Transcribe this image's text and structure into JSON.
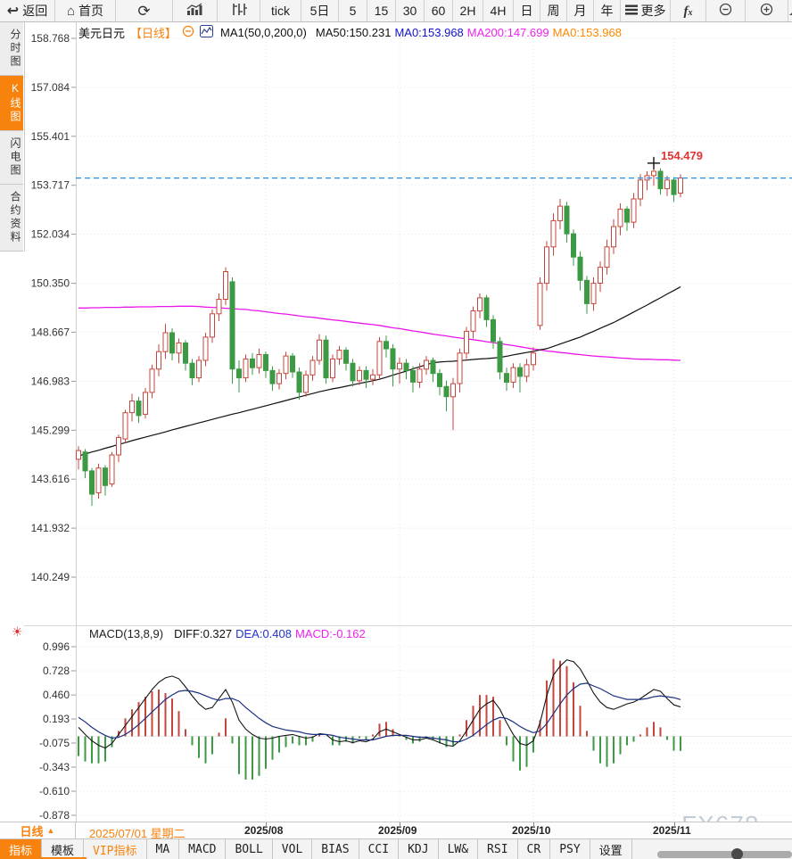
{
  "toolbar": {
    "buttons": [
      {
        "name": "back-button",
        "label": "返回",
        "icon": "back-icon"
      },
      {
        "name": "home-button",
        "label": "首页",
        "icon": "home-icon"
      },
      {
        "name": "refresh-button",
        "label": "",
        "icon": "refresh-icon"
      },
      {
        "name": "bar-chart-button",
        "label": "",
        "icon": "bar-chart-icon"
      },
      {
        "name": "candlestick-chart-button",
        "label": "",
        "icon": "candlestick-icon"
      },
      {
        "name": "interval-tick-button",
        "label": "tick"
      },
      {
        "name": "interval-5d-button",
        "label": "5日"
      },
      {
        "name": "interval-5-button",
        "label": "5"
      },
      {
        "name": "interval-15-button",
        "label": "15"
      },
      {
        "name": "interval-30-button",
        "label": "30"
      },
      {
        "name": "interval-60-button",
        "label": "60"
      },
      {
        "name": "interval-2h-button",
        "label": "2H"
      },
      {
        "name": "interval-4h-button",
        "label": "4H"
      },
      {
        "name": "interval-day-button",
        "label": "日"
      },
      {
        "name": "interval-week-button",
        "label": "周"
      },
      {
        "name": "interval-month-button",
        "label": "月"
      },
      {
        "name": "interval-year-button",
        "label": "年"
      },
      {
        "name": "more-button",
        "label": "更多",
        "icon": "menu-icon"
      },
      {
        "name": "formula-button",
        "label": "",
        "icon": "fx-icon"
      },
      {
        "name": "zoom-out-button",
        "label": "",
        "icon": "zoom-out-icon"
      },
      {
        "name": "zoom-in-button",
        "label": "",
        "icon": "zoom-in-icon"
      },
      {
        "name": "draw-button",
        "label": "",
        "icon": "draw-icon"
      }
    ]
  },
  "sidebar": {
    "items": [
      {
        "name": "sidebar-item-time-chart",
        "label": "分时图",
        "active": false
      },
      {
        "name": "sidebar-item-kline-chart",
        "label": "K线图",
        "active": true
      },
      {
        "name": "sidebar-item-lightning-chart",
        "label": "闪电图",
        "active": false
      },
      {
        "name": "sidebar-item-contract-info",
        "label": "合约资料",
        "active": false
      }
    ]
  },
  "chart_header": {
    "symbol": "美元日元",
    "period_tag": "【日线】",
    "ma_settings": "MA1(50,0,200,0)",
    "ma_values": [
      {
        "label": "MA50:150.231",
        "color": "#111111"
      },
      {
        "label": "MA0:153.968",
        "color": "#1111cc"
      },
      {
        "label": "MA200:147.699",
        "color": "#ee22ee"
      },
      {
        "label": "MA0:153.968",
        "color": "#ff8800"
      }
    ]
  },
  "macd_header": {
    "title": "MACD(13,8,9)",
    "values": [
      {
        "label": "DIFF:0.327",
        "color": "#111111"
      },
      {
        "label": "DEA:0.408",
        "color": "#2233cc"
      },
      {
        "label": "MACD:-0.162",
        "color": "#ee22ee"
      }
    ]
  },
  "price_marker": {
    "value": "154.479"
  },
  "status_bar": {
    "period": "日线",
    "date": "2025/07/01 星期二"
  },
  "bottom_tabs": [
    {
      "id": "indicator",
      "label": "指标",
      "state": "active"
    },
    {
      "id": "template",
      "label": "模板"
    },
    {
      "id": "vip-indicator",
      "label": "VIP指标",
      "state": "vip"
    },
    {
      "id": "ma",
      "label": "MA"
    },
    {
      "id": "macd",
      "label": "MACD"
    },
    {
      "id": "boll",
      "label": "BOLL"
    },
    {
      "id": "vol",
      "label": "VOL"
    },
    {
      "id": "bias",
      "label": "BIAS"
    },
    {
      "id": "cci",
      "label": "CCI"
    },
    {
      "id": "kdj",
      "label": "KDJ"
    },
    {
      "id": "lwr",
      "label": "LW&"
    },
    {
      "id": "rsi",
      "label": "RSI"
    },
    {
      "id": "cr",
      "label": "CR"
    },
    {
      "id": "psy",
      "label": "PSY"
    },
    {
      "id": "settings",
      "label": "设置"
    }
  ],
  "watermark": "FX678",
  "chart_data": {
    "type": "candlestick",
    "symbol": "USD/JPY 美元日元",
    "period": "daily",
    "start_date": "2025/07/01",
    "current_price": 153.968,
    "high_marker": {
      "value": 154.479,
      "index": 86
    },
    "y_axis": {
      "ticks": [
        158.768,
        157.084,
        155.401,
        153.717,
        152.034,
        150.35,
        148.667,
        146.983,
        145.299,
        143.616,
        141.932,
        140.249
      ]
    },
    "x_axis": {
      "month_labels": [
        "2025/08",
        "2025/09",
        "2025/10",
        "2025/11"
      ],
      "month_label_indices": [
        28,
        48,
        68,
        89
      ]
    },
    "colors": {
      "up": "#c6453e",
      "down": "#3c9a44",
      "ma50": "#101010",
      "ma200": "#e916e9",
      "diff": "#151515",
      "dea": "#1b3080",
      "price_line": "#1f8fe8",
      "marker": "#e03333"
    },
    "candles": [
      [
        144.3,
        144.75,
        143.95,
        144.6
      ],
      [
        144.55,
        144.65,
        143.65,
        143.9
      ],
      [
        143.9,
        144.0,
        142.7,
        143.1
      ],
      [
        143.15,
        144.15,
        142.95,
        144.0
      ],
      [
        144.0,
        144.1,
        143.05,
        143.4
      ],
      [
        143.45,
        144.55,
        143.35,
        144.45
      ],
      [
        144.45,
        145.15,
        144.2,
        145.05
      ],
      [
        145.0,
        146.0,
        144.85,
        145.9
      ],
      [
        145.9,
        146.55,
        145.6,
        146.3
      ],
      [
        146.3,
        146.45,
        145.55,
        145.8
      ],
      [
        145.85,
        146.75,
        145.7,
        146.6
      ],
      [
        146.6,
        147.55,
        146.4,
        147.4
      ],
      [
        147.4,
        148.25,
        147.15,
        148.0
      ],
      [
        148.0,
        148.95,
        147.75,
        148.65
      ],
      [
        148.65,
        148.8,
        147.7,
        147.95
      ],
      [
        147.95,
        148.45,
        147.6,
        148.3
      ],
      [
        148.3,
        148.4,
        147.35,
        147.6
      ],
      [
        147.6,
        147.75,
        146.85,
        147.1
      ],
      [
        147.1,
        147.85,
        146.95,
        147.7
      ],
      [
        147.7,
        148.65,
        147.5,
        148.5
      ],
      [
        148.5,
        149.45,
        148.3,
        149.3
      ],
      [
        149.3,
        150.0,
        149.05,
        149.8
      ],
      [
        149.8,
        150.9,
        149.6,
        150.75
      ],
      [
        150.4,
        150.55,
        146.9,
        147.4
      ],
      [
        147.4,
        147.7,
        146.6,
        147.1
      ],
      [
        147.1,
        147.9,
        146.95,
        147.75
      ],
      [
        147.75,
        147.95,
        147.2,
        147.45
      ],
      [
        147.45,
        148.1,
        147.25,
        147.9
      ],
      [
        147.9,
        148.0,
        147.1,
        147.35
      ],
      [
        147.35,
        147.5,
        146.65,
        146.9
      ],
      [
        146.9,
        147.4,
        146.7,
        147.25
      ],
      [
        147.25,
        148.0,
        147.05,
        147.85
      ],
      [
        147.85,
        147.95,
        147.1,
        147.3
      ],
      [
        147.3,
        147.45,
        146.35,
        146.6
      ],
      [
        146.6,
        147.35,
        146.45,
        147.2
      ],
      [
        147.2,
        147.85,
        147.0,
        147.7
      ],
      [
        147.7,
        148.6,
        147.55,
        148.4
      ],
      [
        148.4,
        148.55,
        146.9,
        147.1
      ],
      [
        147.1,
        147.9,
        146.95,
        147.75
      ],
      [
        147.75,
        148.2,
        147.55,
        148.05
      ],
      [
        148.05,
        148.15,
        147.35,
        147.6
      ],
      [
        147.6,
        147.75,
        146.8,
        147.0
      ],
      [
        147.0,
        147.5,
        146.85,
        147.35
      ],
      [
        147.35,
        147.5,
        146.75,
        147.05
      ],
      [
        147.05,
        147.4,
        146.85,
        147.2
      ],
      [
        147.2,
        148.5,
        147.05,
        148.35
      ],
      [
        148.35,
        148.55,
        147.8,
        148.1
      ],
      [
        148.1,
        148.25,
        146.8,
        147.4
      ],
      [
        147.4,
        147.8,
        146.9,
        147.6
      ],
      [
        147.6,
        147.75,
        147.05,
        147.35
      ],
      [
        147.35,
        147.5,
        146.6,
        146.95
      ],
      [
        146.95,
        147.6,
        146.75,
        147.4
      ],
      [
        147.4,
        147.85,
        147.2,
        147.7
      ],
      [
        147.7,
        147.8,
        146.95,
        147.25
      ],
      [
        147.25,
        147.4,
        146.5,
        146.8
      ],
      [
        146.8,
        147.0,
        145.95,
        146.45
      ],
      [
        146.45,
        147.1,
        145.3,
        146.9
      ],
      [
        146.9,
        148.1,
        146.6,
        147.95
      ],
      [
        147.95,
        148.85,
        147.75,
        148.7
      ],
      [
        148.7,
        149.55,
        148.45,
        149.4
      ],
      [
        149.4,
        150.0,
        149.15,
        149.85
      ],
      [
        149.85,
        149.95,
        148.85,
        149.1
      ],
      [
        149.1,
        149.25,
        148.1,
        148.35
      ],
      [
        148.35,
        148.5,
        147.05,
        147.3
      ],
      [
        147.25,
        147.45,
        146.65,
        146.95
      ],
      [
        146.95,
        147.6,
        146.75,
        147.45
      ],
      [
        147.45,
        147.6,
        146.6,
        147.15
      ],
      [
        147.15,
        147.75,
        146.95,
        147.55
      ],
      [
        147.55,
        148.15,
        147.35,
        147.95
      ],
      [
        148.9,
        150.55,
        148.75,
        150.35
      ],
      [
        150.35,
        151.8,
        150.1,
        151.6
      ],
      [
        151.6,
        152.75,
        151.3,
        152.5
      ],
      [
        152.5,
        153.25,
        152.2,
        153.0
      ],
      [
        153.0,
        153.15,
        151.75,
        152.05
      ],
      [
        152.05,
        152.2,
        150.95,
        151.25
      ],
      [
        151.25,
        151.45,
        150.1,
        150.45
      ],
      [
        150.45,
        150.6,
        149.3,
        149.65
      ],
      [
        149.65,
        150.55,
        149.4,
        150.35
      ],
      [
        150.35,
        151.1,
        150.05,
        150.9
      ],
      [
        150.9,
        151.85,
        150.65,
        151.6
      ],
      [
        151.6,
        152.55,
        151.35,
        152.3
      ],
      [
        152.3,
        153.1,
        152.0,
        152.9
      ],
      [
        152.9,
        153.0,
        152.15,
        152.45
      ],
      [
        152.45,
        153.45,
        152.25,
        153.25
      ],
      [
        153.25,
        154.1,
        153.0,
        153.9
      ],
      [
        153.9,
        154.2,
        153.55,
        154.05
      ],
      [
        154.05,
        154.48,
        153.7,
        154.2
      ],
      [
        154.2,
        154.3,
        153.4,
        153.6
      ],
      [
        153.6,
        154.05,
        153.35,
        153.9
      ],
      [
        153.9,
        154.0,
        153.15,
        153.4
      ],
      [
        153.45,
        154.1,
        153.3,
        153.97
      ]
    ],
    "ma50": [
      144.42,
      144.48,
      144.55,
      144.61,
      144.68,
      144.74,
      144.81,
      144.87,
      144.94,
      145.0,
      145.06,
      145.12,
      145.18,
      145.24,
      145.31,
      145.37,
      145.43,
      145.49,
      145.55,
      145.61,
      145.67,
      145.73,
      145.79,
      145.85,
      145.9,
      145.96,
      146.02,
      146.08,
      146.14,
      146.2,
      146.26,
      146.32,
      146.38,
      146.44,
      146.5,
      146.56,
      146.62,
      146.67,
      146.72,
      146.76,
      146.81,
      146.86,
      146.91,
      146.95,
      147.0,
      147.05,
      147.12,
      147.19,
      147.26,
      147.33,
      147.41,
      147.48,
      147.55,
      147.62,
      147.64,
      147.66,
      147.67,
      147.69,
      147.71,
      147.73,
      147.75,
      147.76,
      147.78,
      147.8,
      147.84,
      147.89,
      147.93,
      147.97,
      148.01,
      148.06,
      148.1,
      148.18,
      148.26,
      148.34,
      148.42,
      148.5,
      148.6,
      148.7,
      148.8,
      148.9,
      149.0,
      149.12,
      149.24,
      149.36,
      149.48,
      149.6,
      149.73,
      149.85,
      149.98,
      150.1,
      150.23
    ],
    "ma200": [
      149.5,
      149.5,
      149.51,
      149.51,
      149.52,
      149.52,
      149.52,
      149.53,
      149.53,
      149.54,
      149.54,
      149.54,
      149.55,
      149.55,
      149.55,
      149.56,
      149.56,
      149.56,
      149.55,
      149.53,
      149.52,
      149.51,
      149.49,
      149.48,
      149.46,
      149.45,
      149.42,
      149.4,
      149.37,
      149.34,
      149.31,
      149.29,
      149.26,
      149.23,
      149.2,
      149.18,
      149.15,
      149.12,
      149.09,
      149.07,
      149.04,
      149.01,
      148.98,
      148.95,
      148.93,
      148.9,
      148.86,
      148.82,
      148.79,
      148.75,
      148.71,
      148.68,
      148.64,
      148.6,
      148.57,
      148.54,
      148.5,
      148.47,
      148.44,
      148.41,
      148.38,
      148.34,
      148.31,
      148.28,
      148.24,
      148.21,
      148.17,
      148.13,
      148.09,
      148.06,
      148.02,
      148.0,
      147.97,
      147.95,
      147.92,
      147.9,
      147.87,
      147.85,
      147.83,
      147.82,
      147.8,
      147.78,
      147.77,
      147.75,
      147.74,
      147.74,
      147.73,
      147.72,
      147.72,
      147.71,
      147.7
    ],
    "macd": {
      "params": "13,8,9",
      "y_ticks": [
        0.996,
        0.728,
        0.46,
        0.193,
        -0.075,
        -0.343,
        -0.61,
        -0.878
      ],
      "diff": [
        0.1,
        0.02,
        -0.05,
        -0.1,
        -0.13,
        -0.08,
        0.02,
        0.12,
        0.22,
        0.32,
        0.42,
        0.52,
        0.6,
        0.65,
        0.67,
        0.64,
        0.55,
        0.45,
        0.36,
        0.3,
        0.32,
        0.42,
        0.52,
        0.38,
        0.18,
        0.08,
        0.02,
        -0.02,
        -0.03,
        -0.02,
        0.0,
        0.01,
        0.02,
        0.0,
        -0.02,
        -0.01,
        0.03,
        0.02,
        -0.04,
        -0.06,
        -0.05,
        -0.07,
        -0.05,
        -0.06,
        -0.03,
        0.05,
        0.08,
        0.05,
        0.02,
        -0.01,
        -0.04,
        -0.04,
        -0.02,
        -0.04,
        -0.07,
        -0.1,
        -0.11,
        -0.05,
        0.06,
        0.18,
        0.3,
        0.36,
        0.4,
        0.3,
        0.15,
        0.02,
        -0.08,
        -0.1,
        -0.05,
        0.15,
        0.45,
        0.68,
        0.78,
        0.85,
        0.83,
        0.75,
        0.62,
        0.48,
        0.38,
        0.32,
        0.3,
        0.33,
        0.36,
        0.38,
        0.42,
        0.47,
        0.52,
        0.5,
        0.42,
        0.35,
        0.327
      ],
      "dea": [
        0.21,
        0.16,
        0.1,
        0.05,
        0.01,
        -0.02,
        -0.01,
        0.02,
        0.07,
        0.13,
        0.2,
        0.27,
        0.34,
        0.41,
        0.46,
        0.5,
        0.51,
        0.5,
        0.48,
        0.45,
        0.42,
        0.4,
        0.42,
        0.42,
        0.39,
        0.32,
        0.26,
        0.2,
        0.15,
        0.11,
        0.09,
        0.07,
        0.06,
        0.05,
        0.03,
        0.02,
        0.02,
        0.02,
        0.01,
        -0.01,
        -0.02,
        -0.03,
        -0.04,
        -0.04,
        -0.04,
        -0.02,
        0.0,
        0.01,
        0.01,
        0.01,
        0.0,
        -0.01,
        -0.01,
        -0.02,
        -0.03,
        -0.04,
        -0.06,
        -0.06,
        -0.03,
        0.01,
        0.07,
        0.13,
        0.18,
        0.21,
        0.2,
        0.16,
        0.11,
        0.07,
        0.04,
        0.06,
        0.14,
        0.25,
        0.36,
        0.46,
        0.53,
        0.58,
        0.59,
        0.56,
        0.53,
        0.49,
        0.45,
        0.43,
        0.41,
        0.41,
        0.41,
        0.42,
        0.44,
        0.45,
        0.44,
        0.43,
        0.408
      ]
    }
  }
}
